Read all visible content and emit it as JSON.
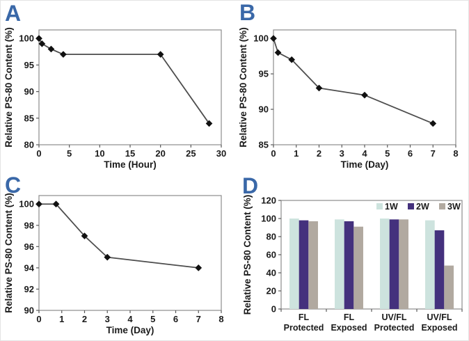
{
  "colors": {
    "panel_label": "#3a68a8",
    "line": "#4d4d4d",
    "marker": "#111111",
    "plot_border": "#8c8c8c",
    "tick": "#595959",
    "text": "#1a1a1a",
    "background": "#ffffff"
  },
  "chart_data": [
    {
      "id": "A",
      "title": "A",
      "type": "line",
      "xlabel": "Time (Hour)",
      "ylabel": "Relative PS-80 Content (%)",
      "x": [
        0,
        0.5,
        2,
        4,
        20,
        28
      ],
      "y": [
        100,
        99,
        98,
        97,
        97,
        84
      ],
      "xlim": [
        0,
        30
      ],
      "ylim": [
        80,
        100
      ],
      "xticks": [
        0,
        5,
        10,
        15,
        20,
        25,
        30
      ],
      "yticks": [
        80,
        85,
        90,
        95,
        100
      ],
      "grid": false,
      "marker": "diamond",
      "legend": null
    },
    {
      "id": "B",
      "title": "B",
      "type": "line",
      "xlabel": "Time (Day)",
      "ylabel": "Relative PS-80 Content (%)",
      "x": [
        0,
        0.2,
        0.8,
        2,
        4,
        7
      ],
      "y": [
        100,
        98,
        97,
        93,
        92,
        88
      ],
      "xlim": [
        0,
        8
      ],
      "ylim": [
        85,
        100
      ],
      "xticks": [
        0,
        1,
        2,
        3,
        4,
        5,
        6,
        7,
        8
      ],
      "yticks": [
        85,
        90,
        95,
        100
      ],
      "grid": false,
      "marker": "diamond",
      "legend": null
    },
    {
      "id": "C",
      "title": "C",
      "type": "line",
      "xlabel": "Time (Day)",
      "ylabel": "Relative PS-80 Content (%)",
      "x": [
        0,
        0.75,
        2,
        3,
        7
      ],
      "y": [
        100,
        100,
        97,
        95,
        94
      ],
      "xlim": [
        0,
        8
      ],
      "ylim": [
        90,
        100
      ],
      "xticks": [
        0,
        1,
        2,
        3,
        4,
        5,
        6,
        7,
        8
      ],
      "yticks": [
        90,
        92,
        94,
        96,
        98,
        100
      ],
      "grid": false,
      "marker": "diamond",
      "legend": null
    },
    {
      "id": "D",
      "title": "D",
      "type": "bar",
      "xlabel": "",
      "ylabel": "Relative PS-80 Content (%)",
      "categories": [
        [
          "FL",
          "Protected"
        ],
        [
          "FL",
          "Exposed"
        ],
        [
          "UV/FL",
          "Protected"
        ],
        [
          "UV/FL",
          "Exposed"
        ]
      ],
      "series": [
        {
          "name": "1W",
          "color": "#cde3de",
          "values": [
            100,
            99,
            100,
            98
          ]
        },
        {
          "name": "2W",
          "color": "#44317d",
          "values": [
            98,
            97,
            99,
            87
          ]
        },
        {
          "name": "3W",
          "color": "#b1a9a0",
          "values": [
            97,
            91,
            99,
            48
          ]
        }
      ],
      "ylim": [
        0,
        120
      ],
      "yticks": [
        0,
        20,
        40,
        60,
        80,
        100,
        120
      ],
      "grid": false,
      "legend_position": "top-right"
    }
  ]
}
